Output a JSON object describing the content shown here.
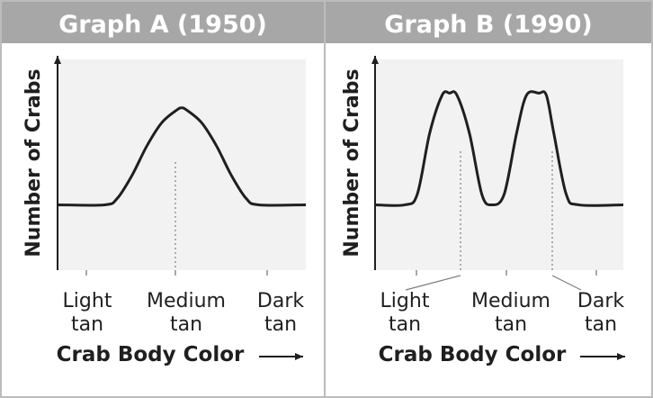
{
  "chart_data": [
    {
      "type": "line",
      "title": "Graph A (1950)",
      "ylabel": "Number of Crabs",
      "xlabel": "Crab Body Color",
      "x_tick_labels": [
        {
          "line1": "Light",
          "line2": "tan"
        },
        {
          "line1": "Medium",
          "line2": "tan"
        },
        {
          "line1": "Dark",
          "line2": "tan"
        }
      ],
      "xlim": [
        0,
        1
      ],
      "ylim": [
        0,
        1
      ],
      "grid": false,
      "series": [
        {
          "x": [
            0,
            0.19,
            0.24,
            0.3,
            0.36,
            0.42,
            0.48,
            0.5,
            0.52,
            0.58,
            0.64,
            0.7,
            0.76,
            0.81,
            1
          ],
          "values": [
            0.31,
            0.31,
            0.34,
            0.45,
            0.59,
            0.7,
            0.76,
            0.77,
            0.76,
            0.7,
            0.59,
            0.45,
            0.34,
            0.31,
            0.31
          ]
        }
      ],
      "annotations": [
        "dotted line at Medium tan peak"
      ]
    },
    {
      "type": "line",
      "title": "Graph B (1990)",
      "ylabel": "Number of Crabs",
      "xlabel": "Crab Body Color",
      "x_tick_labels": [
        {
          "line1": "Light",
          "line2": "tan"
        },
        {
          "line1": "Medium",
          "line2": "tan"
        },
        {
          "line1": "Dark",
          "line2": "tan"
        }
      ],
      "xlim": [
        0,
        1
      ],
      "ylim": [
        0,
        1
      ],
      "grid": false,
      "series": [
        {
          "x": [
            0,
            0.12,
            0.17,
            0.22,
            0.27,
            0.3,
            0.33,
            0.38,
            0.43,
            0.47,
            0.52,
            0.57,
            0.61,
            0.66,
            0.69,
            0.72,
            0.77,
            0.82,
            1
          ],
          "values": [
            0.31,
            0.31,
            0.36,
            0.65,
            0.83,
            0.84,
            0.83,
            0.65,
            0.36,
            0.31,
            0.36,
            0.65,
            0.83,
            0.84,
            0.83,
            0.65,
            0.36,
            0.31,
            0.31
          ]
        }
      ],
      "annotations": [
        "dotted lines at Light tan and Dark tan peaks"
      ]
    }
  ]
}
